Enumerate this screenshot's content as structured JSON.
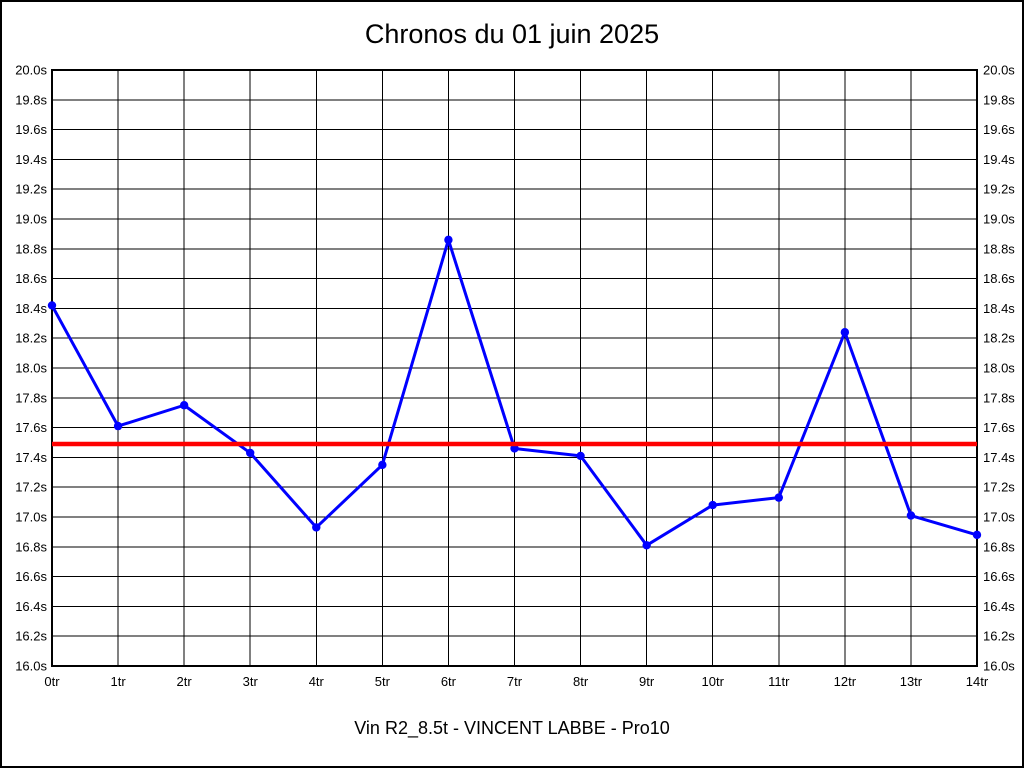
{
  "chart_data": {
    "type": "line",
    "title": "Chronos du 01 juin 2025",
    "caption": "Vin R2_8.5t - VINCENT LABBE - Pro10",
    "x_categories": [
      "0tr",
      "1tr",
      "2tr",
      "3tr",
      "4tr",
      "5tr",
      "6tr",
      "7tr",
      "8tr",
      "9tr",
      "10tr",
      "11tr",
      "12tr",
      "13tr",
      "14tr"
    ],
    "series": [
      {
        "name": "chrono",
        "color": "#0000ff",
        "values": [
          18.42,
          17.61,
          17.75,
          17.43,
          16.93,
          17.35,
          18.86,
          17.46,
          17.41,
          16.81,
          17.08,
          17.13,
          18.24,
          17.01,
          16.88
        ]
      }
    ],
    "reference_line": {
      "value": 17.49,
      "color": "#ff0000"
    },
    "ylim": [
      16.0,
      20.0
    ],
    "y_step": 0.2,
    "y_unit": "s",
    "grid": true,
    "grid_color": "#000000",
    "y_axis_both_sides": true,
    "legend": "none"
  }
}
